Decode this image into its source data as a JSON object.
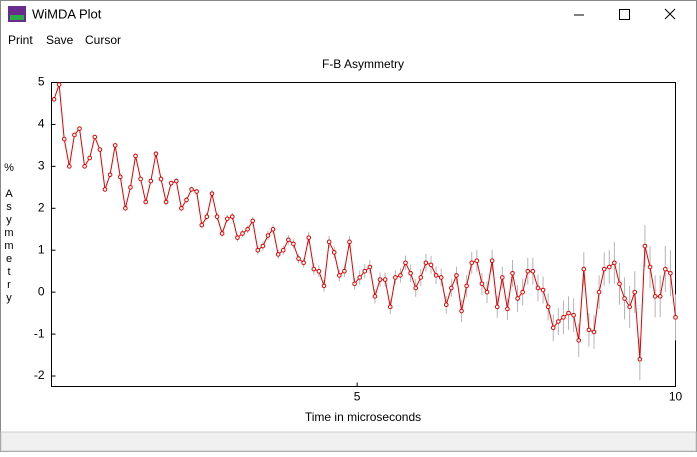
{
  "window": {
    "title": "WiMDA Plot",
    "menu": [
      "Print",
      "Save",
      "Cursor"
    ]
  },
  "chart_data": {
    "type": "line",
    "title": "F-B Asymmetry",
    "x_label": "Time in microseconds",
    "y_label": "% Asymmetry",
    "color": "#e00000",
    "error_color": "#b4b4b4",
    "xlim": [
      0.2,
      10
    ],
    "xticks": [
      5,
      10
    ],
    "ylim": [
      -2.25,
      5
    ],
    "yticks": [
      -2,
      -1,
      0,
      1,
      2,
      3,
      4,
      5
    ],
    "x": [
      0.24,
      0.32,
      0.4,
      0.48,
      0.56,
      0.64,
      0.72,
      0.8,
      0.88,
      0.96,
      1.04,
      1.12,
      1.2,
      1.28,
      1.36,
      1.44,
      1.52,
      1.6,
      1.68,
      1.76,
      1.84,
      1.92,
      2,
      2.08,
      2.16,
      2.24,
      2.32,
      2.4,
      2.48,
      2.56,
      2.64,
      2.72,
      2.8,
      2.88,
      2.96,
      3.04,
      3.12,
      3.2,
      3.28,
      3.36,
      3.44,
      3.52,
      3.6,
      3.68,
      3.76,
      3.84,
      3.92,
      4,
      4.08,
      4.16,
      4.24,
      4.32,
      4.4,
      4.48,
      4.56,
      4.64,
      4.72,
      4.8,
      4.88,
      4.96,
      5.04,
      5.12,
      5.2,
      5.28,
      5.36,
      5.44,
      5.52,
      5.6,
      5.68,
      5.76,
      5.84,
      5.92,
      6,
      6.08,
      6.16,
      6.24,
      6.32,
      6.4,
      6.48,
      6.56,
      6.64,
      6.72,
      6.8,
      6.88,
      6.96,
      7.04,
      7.12,
      7.2,
      7.28,
      7.36,
      7.44,
      7.52,
      7.6,
      7.68,
      7.76,
      7.84,
      7.92,
      8,
      8.08,
      8.16,
      8.24,
      8.32,
      8.4,
      8.48,
      8.56,
      8.64,
      8.72,
      8.8,
      8.88,
      8.96,
      9.04,
      9.12,
      9.2,
      9.28,
      9.36,
      9.44,
      9.52,
      9.6,
      9.68,
      9.76,
      9.84,
      9.92,
      10
    ],
    "values": [
      4.6,
      4.95,
      3.65,
      3.0,
      3.75,
      3.9,
      3.0,
      3.2,
      3.7,
      3.4,
      2.45,
      2.8,
      3.5,
      2.75,
      2.0,
      2.5,
      3.25,
      2.7,
      2.15,
      2.65,
      3.3,
      2.7,
      2.15,
      2.6,
      2.65,
      2.0,
      2.2,
      2.45,
      2.4,
      1.6,
      1.8,
      2.35,
      1.8,
      1.4,
      1.75,
      1.8,
      1.3,
      1.4,
      1.5,
      1.7,
      1.0,
      1.1,
      1.35,
      1.5,
      0.9,
      1.0,
      1.25,
      1.15,
      0.8,
      0.7,
      1.3,
      0.55,
      0.5,
      0.15,
      1.2,
      0.95,
      0.4,
      0.5,
      1.2,
      0.2,
      0.35,
      0.5,
      0.6,
      -0.1,
      0.3,
      0.3,
      -0.35,
      0.35,
      0.4,
      0.7,
      0.45,
      0.1,
      0.35,
      0.7,
      0.65,
      0.4,
      0.35,
      -0.3,
      0.1,
      0.4,
      -0.45,
      0.15,
      0.7,
      0.75,
      0.2,
      0.0,
      0.75,
      -0.35,
      0.35,
      -0.4,
      0.45,
      -0.15,
      0.0,
      0.5,
      0.5,
      0.1,
      0.05,
      -0.35,
      -0.85,
      -0.7,
      -0.6,
      -0.5,
      -0.55,
      -1.15,
      0.55,
      -0.9,
      -0.95,
      0.0,
      0.55,
      0.6,
      0.7,
      0.2,
      -0.15,
      -0.35,
      0.0,
      -1.6,
      1.1,
      0.6,
      -0.1,
      -0.1,
      0.55,
      0.45,
      -0.6
    ],
    "errors": [
      0.05,
      0.05,
      0.05,
      0.05,
      0.05,
      0.05,
      0.05,
      0.05,
      0.05,
      0.05,
      0.06,
      0.06,
      0.06,
      0.06,
      0.06,
      0.06,
      0.06,
      0.06,
      0.06,
      0.06,
      0.07,
      0.07,
      0.07,
      0.07,
      0.07,
      0.07,
      0.07,
      0.07,
      0.07,
      0.07,
      0.09,
      0.09,
      0.09,
      0.09,
      0.09,
      0.09,
      0.09,
      0.09,
      0.09,
      0.09,
      0.11,
      0.11,
      0.11,
      0.11,
      0.11,
      0.11,
      0.11,
      0.11,
      0.11,
      0.11,
      0.14,
      0.14,
      0.14,
      0.14,
      0.14,
      0.14,
      0.14,
      0.14,
      0.14,
      0.14,
      0.17,
      0.17,
      0.17,
      0.17,
      0.17,
      0.17,
      0.17,
      0.17,
      0.17,
      0.17,
      0.21,
      0.21,
      0.21,
      0.21,
      0.21,
      0.21,
      0.21,
      0.21,
      0.21,
      0.21,
      0.26,
      0.26,
      0.26,
      0.26,
      0.26,
      0.26,
      0.26,
      0.26,
      0.26,
      0.26,
      0.32,
      0.32,
      0.32,
      0.32,
      0.32,
      0.32,
      0.32,
      0.32,
      0.32,
      0.32,
      0.4,
      0.4,
      0.4,
      0.4,
      0.4,
      0.4,
      0.4,
      0.4,
      0.4,
      0.4,
      0.5,
      0.5,
      0.5,
      0.5,
      0.5,
      0.5,
      0.5,
      0.5,
      0.5,
      0.5,
      0.55,
      0.55,
      0.55
    ]
  }
}
